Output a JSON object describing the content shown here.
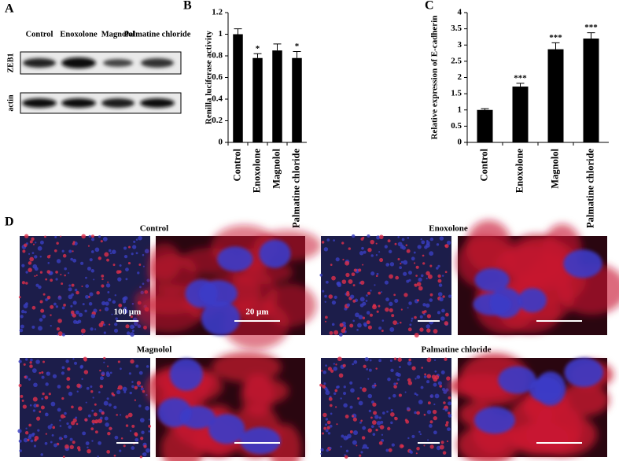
{
  "panel_a": {
    "letter": "A",
    "columns": [
      "Control",
      "Enoxolone",
      "Magnolol",
      "Palmatine chloride"
    ],
    "rows": [
      "ZEB1",
      "actin"
    ]
  },
  "chart_data": [
    {
      "type": "bar",
      "letter": "B",
      "ylabel": "Renilla luciferase activity",
      "categories": [
        "Control",
        "Enoxolone",
        "Magnolol",
        "Palmatine chloride"
      ],
      "values": [
        1.0,
        0.78,
        0.85,
        0.78
      ],
      "errors": [
        0.05,
        0.04,
        0.06,
        0.06
      ],
      "significance": [
        null,
        "*",
        null,
        "*"
      ],
      "color": "#000000",
      "ylim": [
        0,
        1.2
      ],
      "yticks": [
        0,
        0.2,
        0.4,
        0.6,
        0.8,
        1,
        1.2
      ]
    },
    {
      "type": "bar",
      "letter": "C",
      "ylabel": "Relative expression of E-cadherin",
      "categories": [
        "Control",
        "Enoxolone",
        "Magnolol",
        "Palmatine chloride"
      ],
      "values": [
        1.0,
        1.72,
        2.87,
        3.2
      ],
      "errors": [
        0.04,
        0.1,
        0.2,
        0.18
      ],
      "significance": [
        null,
        "***",
        "***",
        "***"
      ],
      "color": "#000000",
      "ylim": [
        0,
        4
      ],
      "yticks": [
        0,
        0.5,
        1,
        1.5,
        2,
        2.5,
        3,
        3.5,
        4
      ]
    }
  ],
  "panel_d": {
    "letter": "D",
    "panels": [
      "Control",
      "Enoxolone",
      "Magnolol",
      "Palmatine chloride"
    ],
    "scale_labels": [
      "100 μm",
      "20 μm"
    ]
  }
}
